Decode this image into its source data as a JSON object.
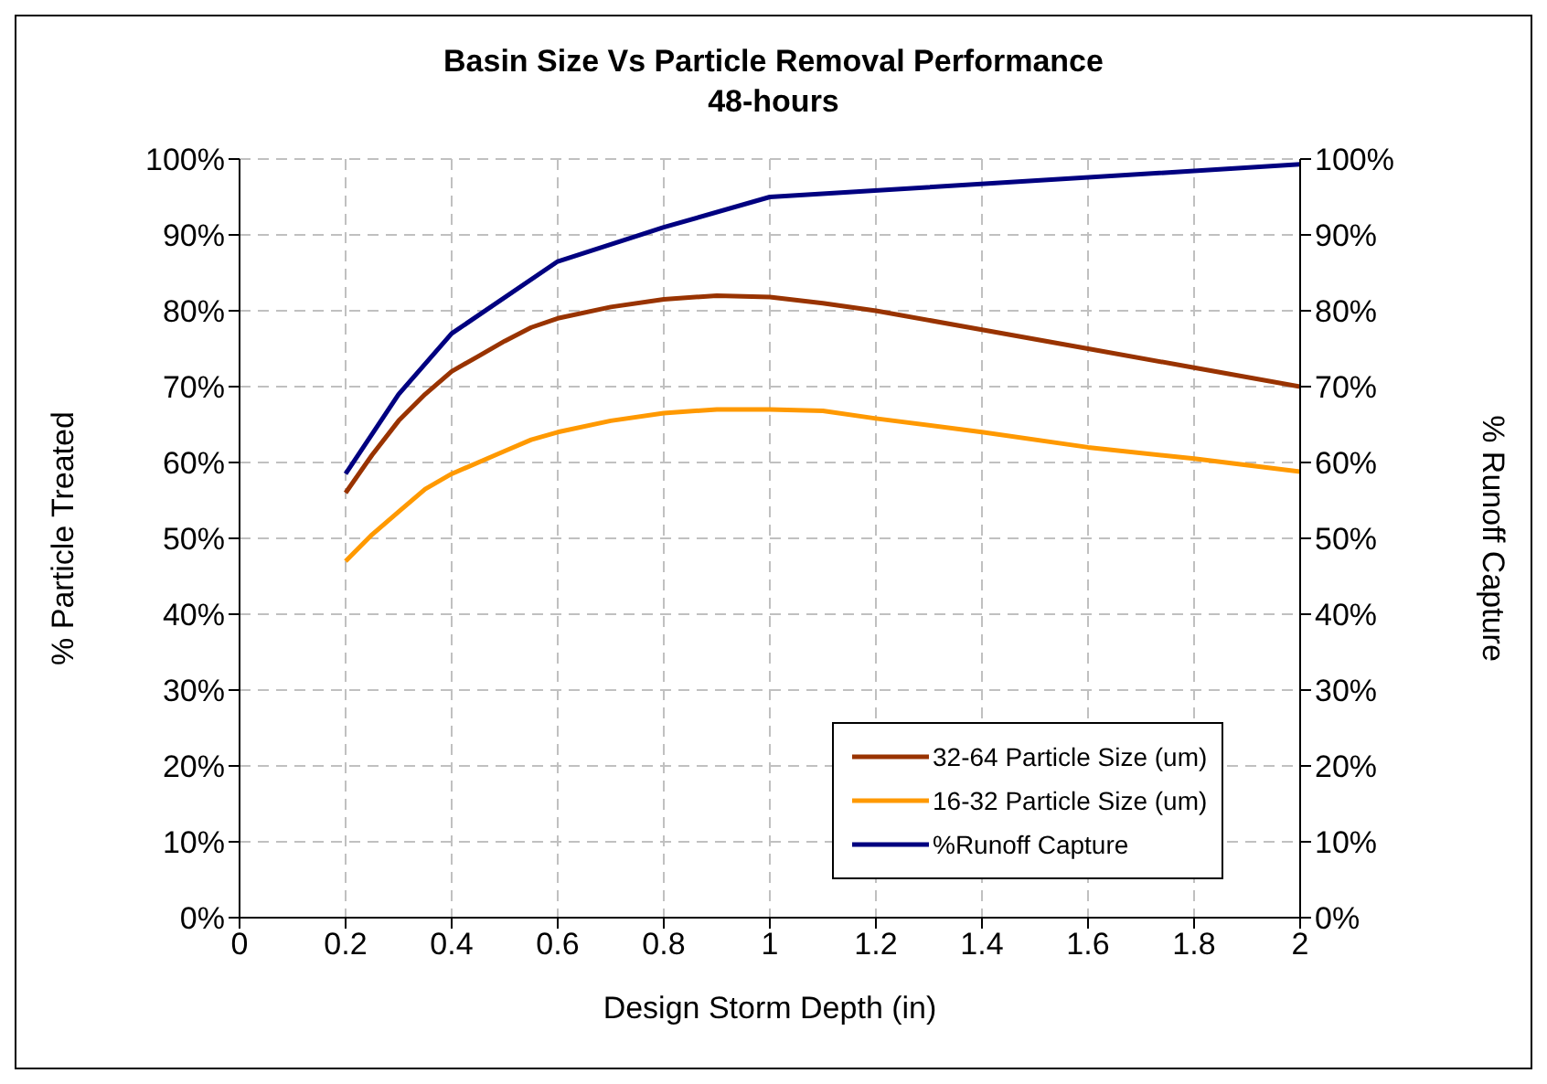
{
  "chart_data": {
    "type": "line",
    "title": "Basin Size Vs Particle Removal Performance",
    "subtitle": "48-hours",
    "xlabel": "Design Storm Depth (in)",
    "ylabel": "% Particle Treated",
    "y2label": "% Runoff Capture",
    "xlim": [
      0,
      2
    ],
    "xticks": [
      0,
      0.2,
      0.4,
      0.6,
      0.8,
      1,
      1.2,
      1.4,
      1.6,
      1.8,
      2
    ],
    "ylim": [
      0,
      100
    ],
    "yticks": [
      {
        "value": 0,
        "label": "0%"
      },
      {
        "value": 10,
        "label": "10%"
      },
      {
        "value": 20,
        "label": "20%"
      },
      {
        "value": 30,
        "label": "30%"
      },
      {
        "value": 40,
        "label": "40%"
      },
      {
        "value": 50,
        "label": "50%"
      },
      {
        "value": 60,
        "label": "60%"
      },
      {
        "value": 70,
        "label": "70%"
      },
      {
        "value": 80,
        "label": "80%"
      },
      {
        "value": 90,
        "label": "90%"
      },
      {
        "value": 100,
        "label": "100%"
      }
    ],
    "y2lim": [
      0,
      100
    ],
    "y2ticks": [
      {
        "value": 0,
        "label": "0%"
      },
      {
        "value": 10,
        "label": "10%"
      },
      {
        "value": 20,
        "label": "20%"
      },
      {
        "value": 30,
        "label": "30%"
      },
      {
        "value": 40,
        "label": "40%"
      },
      {
        "value": 50,
        "label": "50%"
      },
      {
        "value": 60,
        "label": "60%"
      },
      {
        "value": 70,
        "label": "70%"
      },
      {
        "value": 80,
        "label": "80%"
      },
      {
        "value": 90,
        "label": "90%"
      },
      {
        "value": 100,
        "label": "100%"
      }
    ],
    "grid": true,
    "legend": "bottom right",
    "marker": "none",
    "line_style": "solid",
    "series": [
      {
        "name": "32-64 Particle Size (um)",
        "color": "#993300",
        "x": [
          0.2,
          0.25,
          0.3,
          0.35,
          0.4,
          0.45,
          0.5,
          0.55,
          0.6,
          0.7,
          0.8,
          0.9,
          1.0,
          1.1,
          1.2,
          1.4,
          1.6,
          1.8,
          2.0
        ],
        "values": [
          56,
          61,
          65.5,
          69,
          72,
          74,
          76,
          77.8,
          79,
          80.5,
          81.5,
          82,
          81.8,
          81,
          80,
          77.5,
          75,
          72.5,
          70
        ]
      },
      {
        "name": "16-32 Particle Size (um)",
        "color": "#ff9900",
        "x": [
          0.2,
          0.25,
          0.3,
          0.35,
          0.4,
          0.5,
          0.55,
          0.6,
          0.7,
          0.8,
          0.9,
          1.0,
          1.1,
          1.2,
          1.4,
          1.6,
          1.8,
          2.0
        ],
        "values": [
          47,
          50.5,
          53.5,
          56.5,
          58.5,
          61.5,
          63,
          64,
          65.5,
          66.5,
          67,
          67,
          66.8,
          65.8,
          64,
          62,
          60.5,
          58.8
        ]
      },
      {
        "name": "%Runoff Capture",
        "color": "#000080",
        "x": [
          0.2,
          0.3,
          0.4,
          0.6,
          0.8,
          1.0,
          2.0
        ],
        "values": [
          58.5,
          69,
          77,
          86.5,
          91,
          95,
          99.3
        ]
      }
    ]
  }
}
